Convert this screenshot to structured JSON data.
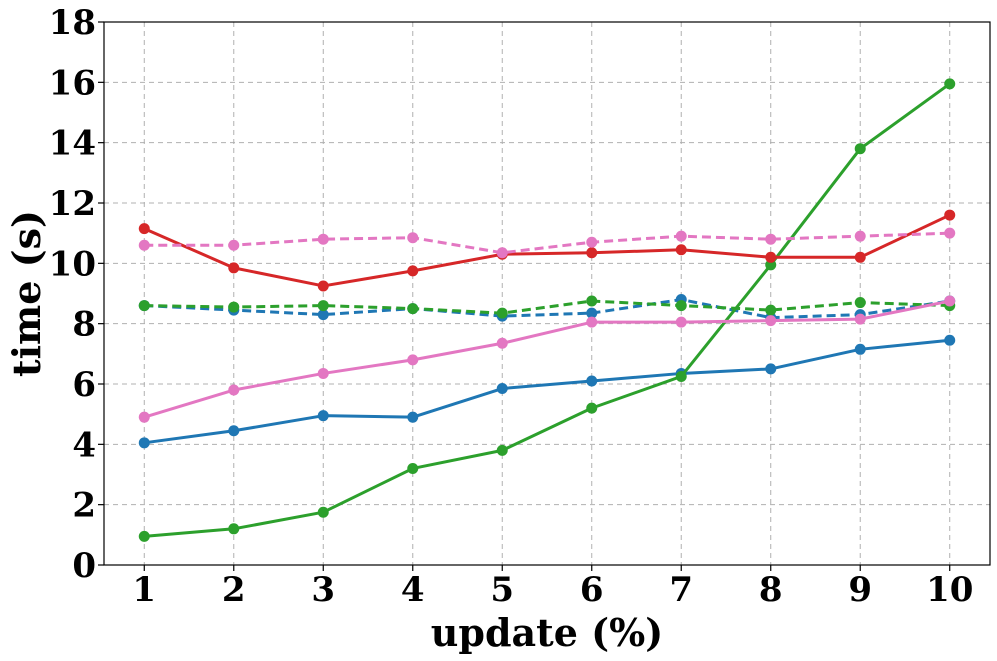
{
  "chart_data": {
    "type": "line",
    "xlabel": "update (%)",
    "ylabel": "time (s)",
    "x": [
      1,
      2,
      3,
      4,
      5,
      6,
      7,
      8,
      9,
      10
    ],
    "xlim": [
      0.55,
      10.45
    ],
    "ylim": [
      0,
      18
    ],
    "xticks": [
      "1",
      "2",
      "3",
      "4",
      "5",
      "6",
      "7",
      "8",
      "9",
      "10"
    ],
    "yticks": [
      "0",
      "2",
      "4",
      "6",
      "8",
      "10",
      "12",
      "14",
      "16",
      "18"
    ],
    "grid": true,
    "legend": "none",
    "series": [
      {
        "color": "#1f77b4",
        "dash": "solid",
        "values": [
          4.05,
          4.45,
          4.95,
          4.9,
          5.85,
          6.1,
          6.35,
          6.5,
          7.15,
          7.45
        ]
      },
      {
        "color": "#1f77b4",
        "dash": "dashed",
        "values": [
          8.6,
          8.45,
          8.3,
          8.5,
          8.25,
          8.35,
          8.8,
          8.2,
          8.3,
          8.75
        ]
      },
      {
        "color": "#2ca02c",
        "dash": "solid",
        "values": [
          0.95,
          1.2,
          1.75,
          3.2,
          3.8,
          5.2,
          6.25,
          9.95,
          13.8,
          15.95
        ]
      },
      {
        "color": "#2ca02c",
        "dash": "dashed",
        "values": [
          8.6,
          8.55,
          8.6,
          8.5,
          8.35,
          8.75,
          8.6,
          8.45,
          8.7,
          8.6
        ]
      },
      {
        "color": "#d62728",
        "dash": "solid",
        "values": [
          11.15,
          9.85,
          9.25,
          9.75,
          10.3,
          10.35,
          10.45,
          10.2,
          10.2,
          11.6
        ]
      },
      {
        "color": "#e377c2",
        "dash": "solid",
        "values": [
          4.9,
          5.8,
          6.35,
          6.8,
          7.35,
          8.05,
          8.05,
          8.1,
          8.15,
          8.75
        ]
      },
      {
        "color": "#e377c2",
        "dash": "dashed",
        "values": [
          10.6,
          10.6,
          10.8,
          10.85,
          10.35,
          10.7,
          10.9,
          10.8,
          10.9,
          11.0
        ]
      }
    ]
  }
}
